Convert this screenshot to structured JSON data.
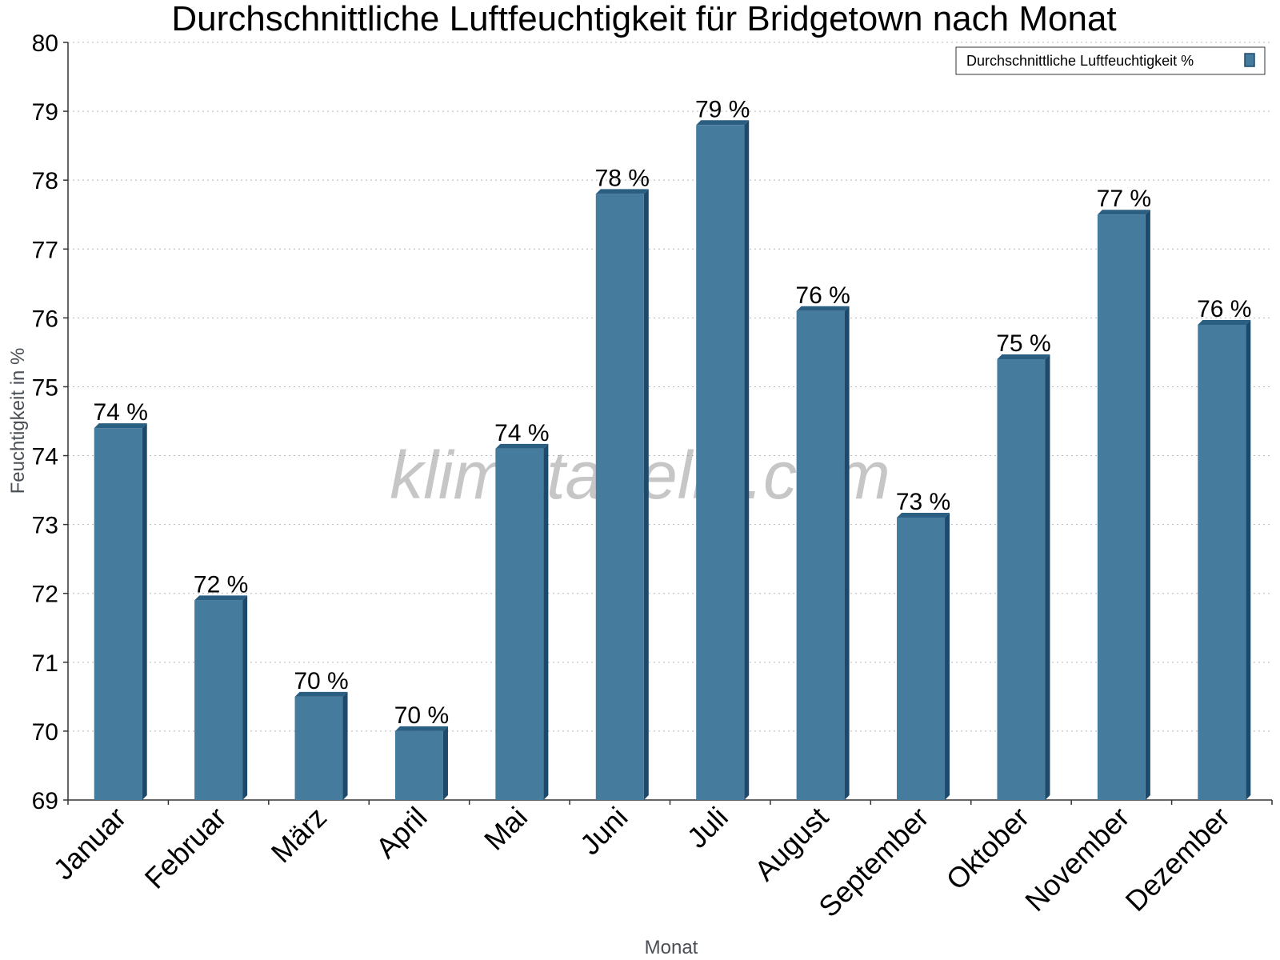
{
  "chart_data": {
    "type": "bar",
    "title": "Durchschnittliche Luftfeuchtigkeit für Bridgetown nach Monat",
    "xlabel": "Monat",
    "ylabel": "Feuchtigkeit in %",
    "ylim": [
      69,
      80
    ],
    "yticks": [
      "69",
      "70",
      "71",
      "72",
      "73",
      "74",
      "75",
      "76",
      "77",
      "78",
      "79",
      "80"
    ],
    "grid": true,
    "legend_position": "top-right",
    "categories": [
      "Januar",
      "Februar",
      "März",
      "April",
      "Mai",
      "Juni",
      "Juli",
      "August",
      "September",
      "Oktober",
      "November",
      "Dezember"
    ],
    "series": [
      {
        "name": "Durchschnittliche Luftfeuchtigkeit %",
        "values": [
          74.4,
          71.9,
          70.5,
          70.0,
          74.1,
          77.8,
          78.8,
          76.1,
          73.1,
          75.4,
          77.5,
          75.9
        ],
        "labels": [
          "74 %",
          "72 %",
          "70 %",
          "70 %",
          "74 %",
          "78 %",
          "79 %",
          "76 %",
          "73 %",
          "75 %",
          "77 %",
          "76 %"
        ]
      }
    ],
    "watermark": "klimatabelle.com",
    "colors": {
      "bar": "#457b9d",
      "bar_dark": "#1d4a6a",
      "bar_top": "#2b5f82"
    }
  }
}
